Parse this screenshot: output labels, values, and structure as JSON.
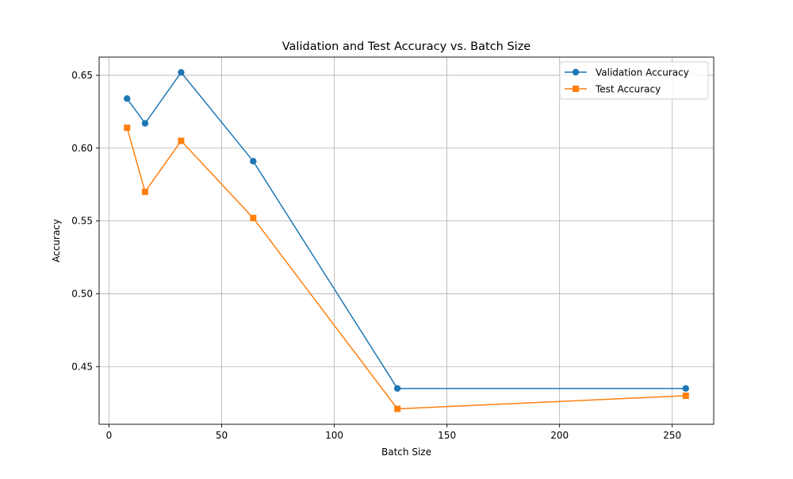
{
  "chart_data": {
    "type": "line",
    "title": "Validation and Test Accuracy vs. Batch Size",
    "xlabel": "Batch Size",
    "ylabel": "Accuracy",
    "x": [
      8,
      16,
      32,
      64,
      128,
      256
    ],
    "series": [
      {
        "name": "Validation Accuracy",
        "values": [
          0.634,
          0.617,
          0.652,
          0.591,
          0.435,
          0.435
        ],
        "color": "#1f77b4",
        "marker": "circle"
      },
      {
        "name": "Test Accuracy",
        "values": [
          0.614,
          0.57,
          0.605,
          0.552,
          0.421,
          0.43
        ],
        "color": "#ff7f0e",
        "marker": "square"
      }
    ],
    "xlim": [
      -4.4,
      268.4
    ],
    "ylim": [
      0.4104,
      0.6625
    ],
    "xticks": [
      0,
      50,
      100,
      150,
      200,
      250
    ],
    "yticks": [
      0.45,
      0.5,
      0.55,
      0.6,
      0.65
    ],
    "xtick_labels": [
      "0",
      "50",
      "100",
      "150",
      "200",
      "250"
    ],
    "ytick_labels": [
      "0.45",
      "0.50",
      "0.55",
      "0.60",
      "0.65"
    ],
    "grid": true,
    "legend_position": "top-right"
  }
}
